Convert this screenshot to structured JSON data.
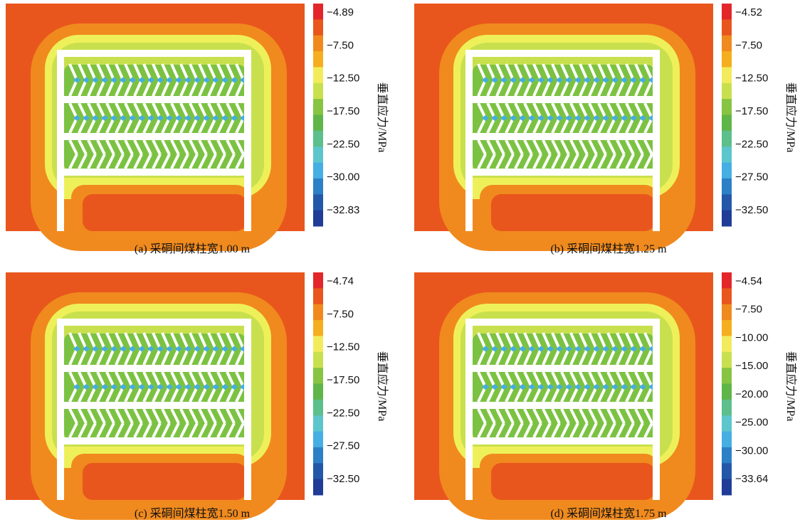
{
  "panels": [
    {
      "caption": "(a)  采硐间煤柱宽1.00 m",
      "colorbar": {
        "title": "垂直应力/MPa",
        "ticks": [
          "−4.89",
          "−7.50",
          "−12.50",
          "−17.50",
          "−22.50",
          "−30.00",
          "−32.83"
        ]
      }
    },
    {
      "caption": "(b)  采硐间煤柱宽1.25 m",
      "colorbar": {
        "title": "垂直应力/MPa",
        "ticks": [
          "−4.52",
          "−7.50",
          "−12.50",
          "−17.50",
          "−22.50",
          "−27.50",
          "−32.50"
        ]
      }
    },
    {
      "caption": "(c)  采硐间煤柱宽1.50 m",
      "colorbar": {
        "title": "垂直应力/MPa",
        "ticks": [
          "−4.74",
          "−7.50",
          "−12.50",
          "−17.50",
          "−22.50",
          "−27.50",
          "−32.50"
        ]
      }
    },
    {
      "caption": "(d)  采硐间煤柱宽1.75 m",
      "colorbar": {
        "title": "垂直应力/MPa",
        "ticks": [
          "−4.54",
          "−7.50",
          "−10.00",
          "−15.00",
          "−20.00",
          "−25.00",
          "−30.00",
          "−33.64"
        ]
      }
    }
  ]
}
